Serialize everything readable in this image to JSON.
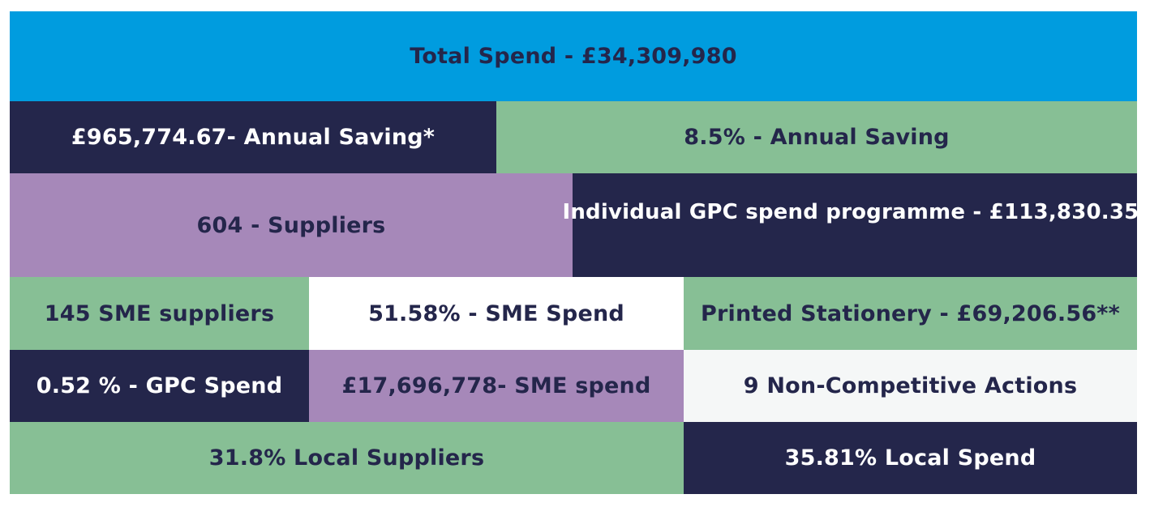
{
  "rows": {
    "total": {
      "label": "Total Spend - £34,309,980"
    },
    "savings": {
      "annual_saving_value": "£965,774.67- Annual Saving*",
      "annual_saving_percent": "8.5% - Annual Saving"
    },
    "suppliers": {
      "suppliers_count": "604 - Suppliers",
      "gpc_programme": "Individual GPC spend programme - £113,830.35."
    },
    "sme": {
      "sme_suppliers": "145 SME suppliers",
      "sme_spend_percent": "51.58% - SME Spend",
      "printed_stationery": "Printed Stationery - £69,206.56**"
    },
    "gpc": {
      "gpc_spend_percent": "0.52 % - GPC Spend",
      "sme_spend_value": "£17,696,778- SME spend",
      "non_competitive": "9 Non-Competitive Actions"
    },
    "local": {
      "local_suppliers": "31.8% Local Suppliers",
      "local_spend": "35.81% Local Spend"
    }
  },
  "colors": {
    "blue": "#009cdf",
    "navy": "#24264b",
    "green": "#87bf95",
    "purple": "#a688b9",
    "white": "#ffffff",
    "offwhite": "#f5f7f7"
  }
}
